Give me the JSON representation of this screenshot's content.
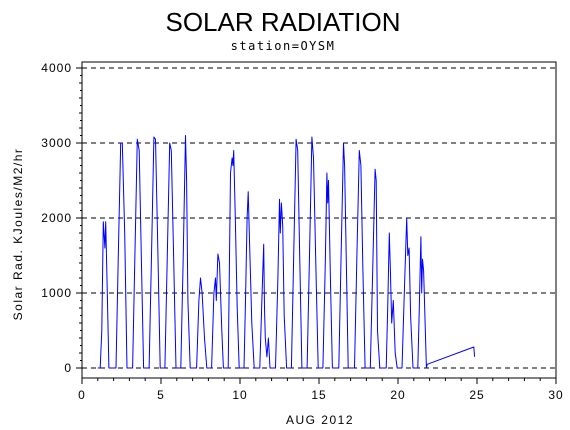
{
  "chart_data": {
    "type": "line",
    "title": "SOLAR RADIATION",
    "subtitle": "station=OYSM",
    "xlabel": "AUG 2012",
    "ylabel": "Solar Rad. KJoules/M2/hr",
    "xlim": [
      0,
      30
    ],
    "ylim": [
      0,
      4000
    ],
    "x_ticks": [
      0,
      5,
      10,
      15,
      20,
      25,
      30
    ],
    "y_ticks": [
      0,
      1000,
      2000,
      3000,
      4000
    ],
    "grid": "horizontal-dashed",
    "line_color": "#0000ff",
    "series": [
      {
        "values": [
          [
            1.0,
            0
          ],
          [
            1.15,
            0
          ],
          [
            1.25,
            500
          ],
          [
            1.35,
            1950
          ],
          [
            1.45,
            1600
          ],
          [
            1.5,
            1950
          ],
          [
            1.6,
            1000
          ],
          [
            1.7,
            0
          ],
          [
            2.0,
            0
          ],
          [
            2.15,
            0
          ],
          [
            2.3,
            1500
          ],
          [
            2.45,
            3000
          ],
          [
            2.55,
            3000
          ],
          [
            2.7,
            1800
          ],
          [
            2.85,
            0
          ],
          [
            3.0,
            0
          ],
          [
            3.2,
            0
          ],
          [
            3.35,
            1500
          ],
          [
            3.5,
            3050
          ],
          [
            3.62,
            2900
          ],
          [
            3.75,
            1500
          ],
          [
            3.9,
            0
          ],
          [
            4.1,
            0
          ],
          [
            4.25,
            0
          ],
          [
            4.4,
            1500
          ],
          [
            4.55,
            3080
          ],
          [
            4.65,
            3050
          ],
          [
            4.8,
            1600
          ],
          [
            4.95,
            0
          ],
          [
            5.1,
            0
          ],
          [
            5.25,
            0
          ],
          [
            5.4,
            1500
          ],
          [
            5.55,
            3000
          ],
          [
            5.65,
            2900
          ],
          [
            5.8,
            1500
          ],
          [
            5.95,
            0
          ],
          [
            6.1,
            0
          ],
          [
            6.25,
            0
          ],
          [
            6.4,
            1400
          ],
          [
            6.55,
            3100
          ],
          [
            6.62,
            2500
          ],
          [
            6.7,
            900
          ],
          [
            6.85,
            0
          ],
          [
            7.1,
            0
          ],
          [
            7.25,
            0
          ],
          [
            7.4,
            900
          ],
          [
            7.5,
            1200
          ],
          [
            7.6,
            1000
          ],
          [
            7.75,
            400
          ],
          [
            7.9,
            0
          ],
          [
            8.05,
            0
          ],
          [
            8.2,
            0
          ],
          [
            8.35,
            1000
          ],
          [
            8.45,
            1200
          ],
          [
            8.5,
            900
          ],
          [
            8.6,
            1520
          ],
          [
            8.7,
            1400
          ],
          [
            8.85,
            500
          ],
          [
            8.95,
            0
          ],
          [
            9.1,
            0
          ],
          [
            9.25,
            0
          ],
          [
            9.4,
            2600
          ],
          [
            9.5,
            2800
          ],
          [
            9.55,
            2700
          ],
          [
            9.6,
            2900
          ],
          [
            9.7,
            2000
          ],
          [
            9.82,
            800
          ],
          [
            9.95,
            0
          ],
          [
            10.1,
            0
          ],
          [
            10.25,
            0
          ],
          [
            10.35,
            900
          ],
          [
            10.45,
            2000
          ],
          [
            10.52,
            2350
          ],
          [
            10.6,
            1700
          ],
          [
            10.75,
            600
          ],
          [
            10.9,
            0
          ],
          [
            11.1,
            0
          ],
          [
            11.25,
            0
          ],
          [
            11.4,
            1000
          ],
          [
            11.5,
            1650
          ],
          [
            11.55,
            800
          ],
          [
            11.6,
            400
          ],
          [
            11.7,
            150
          ],
          [
            11.8,
            400
          ],
          [
            11.9,
            0
          ],
          [
            12.1,
            0
          ],
          [
            12.25,
            0
          ],
          [
            12.4,
            1200
          ],
          [
            12.5,
            2250
          ],
          [
            12.55,
            1800
          ],
          [
            12.62,
            2200
          ],
          [
            12.7,
            1900
          ],
          [
            12.8,
            700
          ],
          [
            12.95,
            0
          ],
          [
            13.1,
            0
          ],
          [
            13.25,
            0
          ],
          [
            13.4,
            1500
          ],
          [
            13.55,
            3050
          ],
          [
            13.65,
            2900
          ],
          [
            13.78,
            1500
          ],
          [
            13.92,
            0
          ],
          [
            14.1,
            0
          ],
          [
            14.25,
            0
          ],
          [
            14.4,
            1500
          ],
          [
            14.55,
            3080
          ],
          [
            14.65,
            2800
          ],
          [
            14.8,
            1400
          ],
          [
            14.95,
            0
          ],
          [
            15.1,
            0
          ],
          [
            15.25,
            0
          ],
          [
            15.4,
            1400
          ],
          [
            15.5,
            2600
          ],
          [
            15.55,
            2200
          ],
          [
            15.6,
            2500
          ],
          [
            15.72,
            1200
          ],
          [
            15.85,
            0
          ],
          [
            16.1,
            0
          ],
          [
            16.25,
            0
          ],
          [
            16.4,
            1500
          ],
          [
            16.55,
            3000
          ],
          [
            16.62,
            2700
          ],
          [
            16.72,
            1500
          ],
          [
            16.85,
            0
          ],
          [
            17.1,
            0
          ],
          [
            17.25,
            0
          ],
          [
            17.4,
            1500
          ],
          [
            17.55,
            2900
          ],
          [
            17.65,
            2700
          ],
          [
            17.78,
            1300
          ],
          [
            17.92,
            0
          ],
          [
            18.1,
            0
          ],
          [
            18.25,
            0
          ],
          [
            18.4,
            1300
          ],
          [
            18.55,
            2650
          ],
          [
            18.62,
            2500
          ],
          [
            18.7,
            500
          ],
          [
            18.85,
            0
          ],
          [
            19.1,
            0
          ],
          [
            19.25,
            0
          ],
          [
            19.35,
            800
          ],
          [
            19.45,
            1800
          ],
          [
            19.52,
            1300
          ],
          [
            19.6,
            600
          ],
          [
            19.7,
            900
          ],
          [
            19.82,
            200
          ],
          [
            19.95,
            0
          ],
          [
            20.1,
            0
          ],
          [
            20.25,
            0
          ],
          [
            20.4,
            1000
          ],
          [
            20.55,
            2000
          ],
          [
            20.62,
            1500
          ],
          [
            20.7,
            1600
          ],
          [
            20.8,
            700
          ],
          [
            20.95,
            0
          ],
          [
            21.15,
            0
          ],
          [
            21.25,
            0
          ],
          [
            21.35,
            800
          ],
          [
            21.45,
            1750
          ],
          [
            21.5,
            1000
          ],
          [
            21.55,
            1450
          ],
          [
            21.62,
            1300
          ],
          [
            21.7,
            700
          ],
          [
            21.8,
            0
          ],
          [
            21.85,
            50
          ],
          [
            24.8,
            280
          ],
          [
            24.85,
            150
          ]
        ]
      }
    ]
  }
}
